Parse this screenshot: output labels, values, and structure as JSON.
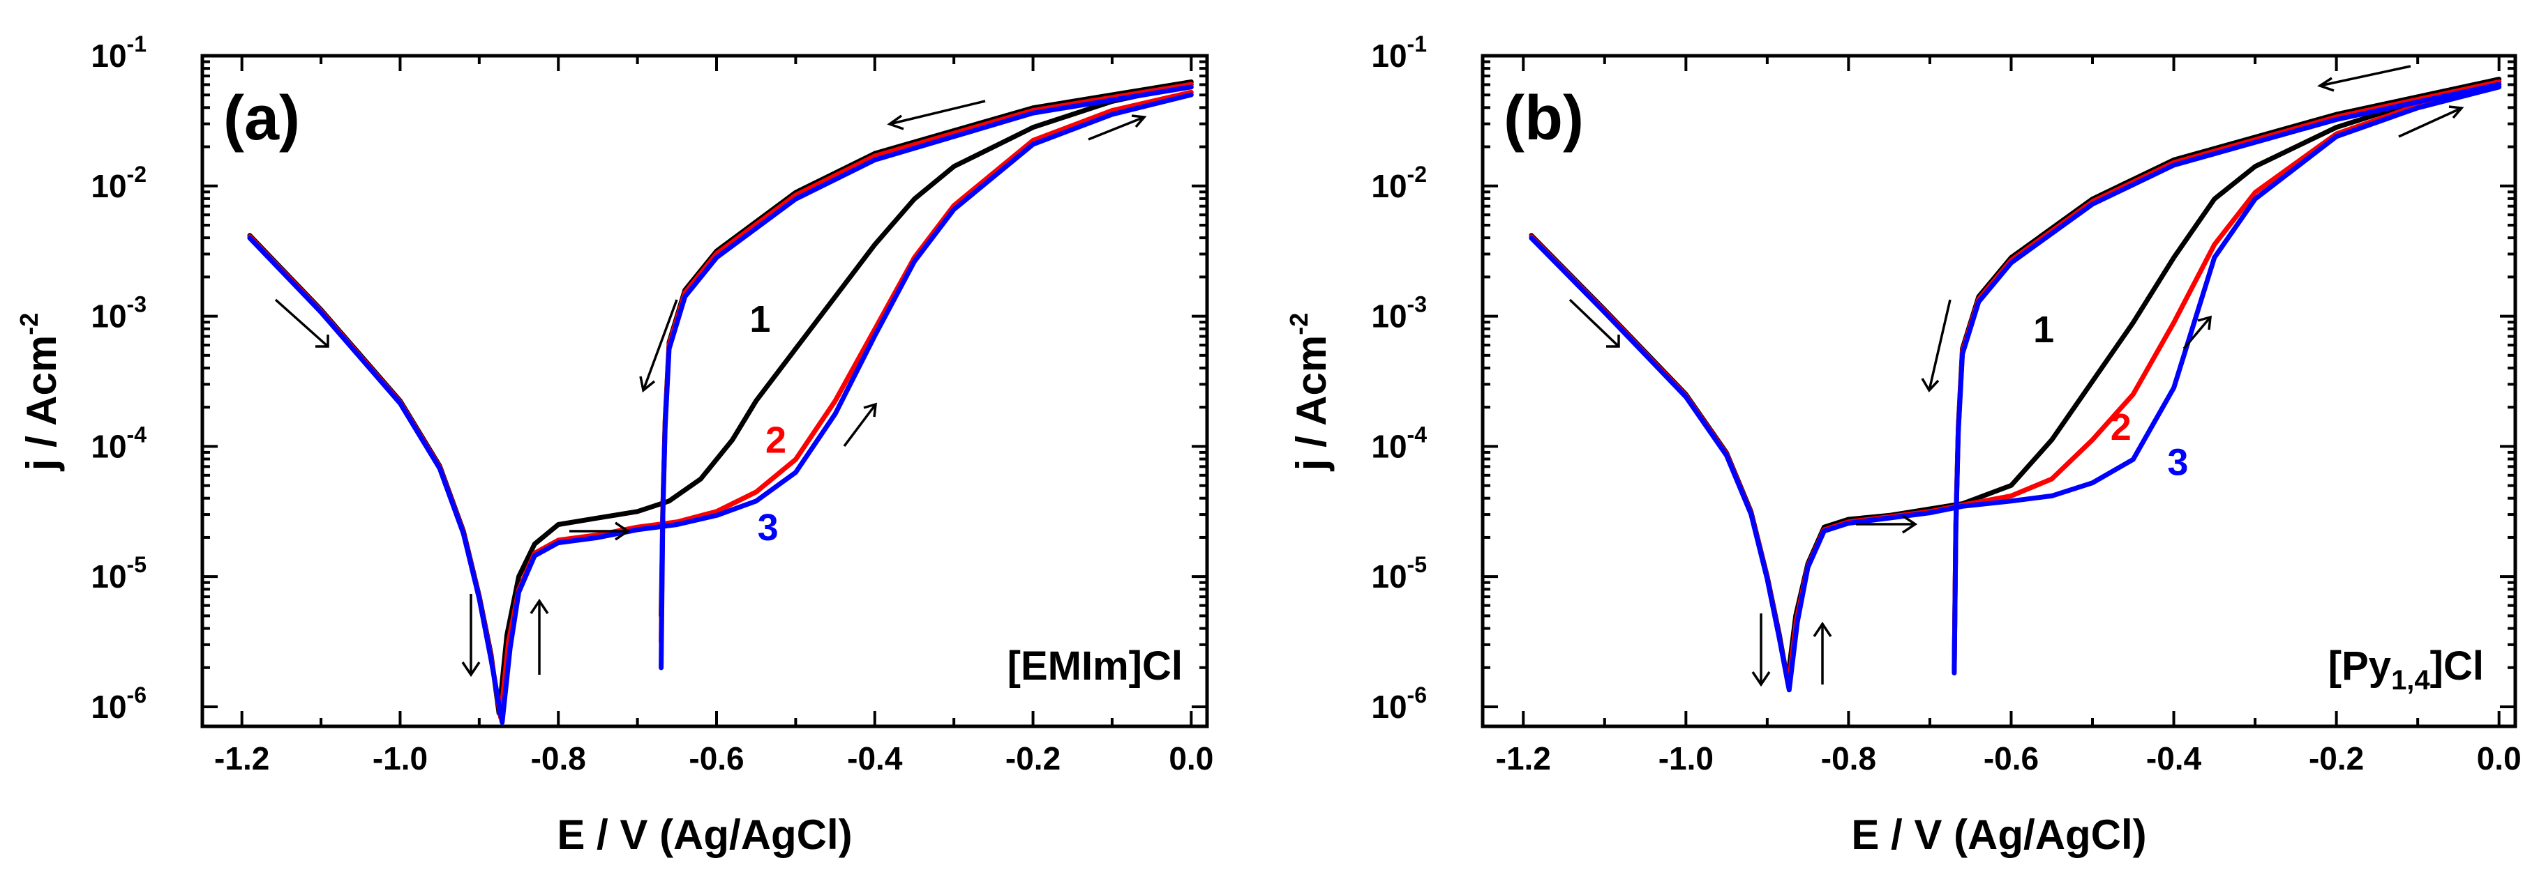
{
  "chart_data": [
    {
      "type": "line",
      "panel_label": "(a)",
      "annotation": "[EMIm]Cl",
      "xlabel": "E / V (Ag/AgCl)",
      "ylabel": "j / Acm-2",
      "ylabel_base": "j / Acm",
      "ylabel_exp": "-2",
      "xlim": [
        -1.25,
        0.02
      ],
      "ylim_log10": [
        -6.15,
        -1.0
      ],
      "xticks": [
        -1.2,
        -1.0,
        -0.8,
        -0.6,
        -0.4,
        -0.2,
        0.0
      ],
      "xtick_labels": [
        "-1.2",
        "-1.0",
        "-0.8",
        "-0.6",
        "-0.4",
        "-0.2",
        "0.0"
      ],
      "ytick_exponents": [
        -6,
        -5,
        -4,
        -3,
        -2,
        -1
      ],
      "ytick_base": "10",
      "ytick_exp_labels": [
        "-6",
        "-5",
        "-4",
        "-3",
        "-2",
        "-1"
      ],
      "series": [
        {
          "name": "1",
          "color": "#000000",
          "label_at": [
            -0.545,
            -3.12
          ],
          "forward": [
            [
              -1.19,
              -2.38
            ],
            [
              -1.1,
              -2.95
            ],
            [
              -1.0,
              -3.65
            ],
            [
              -0.95,
              -4.15
            ],
            [
              -0.92,
              -4.65
            ],
            [
              -0.9,
              -5.15
            ],
            [
              -0.885,
              -5.6
            ],
            [
              -0.875,
              -6.05
            ],
            [
              -0.865,
              -5.45
            ],
            [
              -0.85,
              -5.0
            ],
            [
              -0.83,
              -4.75
            ],
            [
              -0.8,
              -4.6
            ],
            [
              -0.75,
              -4.55
            ],
            [
              -0.7,
              -4.5
            ],
            [
              -0.66,
              -4.42
            ],
            [
              -0.62,
              -4.25
            ],
            [
              -0.58,
              -3.95
            ],
            [
              -0.55,
              -3.65
            ],
            [
              -0.5,
              -3.25
            ],
            [
              -0.45,
              -2.85
            ],
            [
              -0.4,
              -2.45
            ],
            [
              -0.35,
              -2.1
            ],
            [
              -0.3,
              -1.85
            ],
            [
              -0.2,
              -1.55
            ],
            [
              -0.1,
              -1.35
            ],
            [
              0.0,
              -1.22
            ]
          ],
          "reverse": [
            [
              0.0,
              -1.2
            ],
            [
              -0.2,
              -1.4
            ],
            [
              -0.4,
              -1.75
            ],
            [
              -0.5,
              -2.05
            ],
            [
              -0.6,
              -2.5
            ],
            [
              -0.64,
              -2.8
            ],
            [
              -0.66,
              -3.2
            ],
            [
              -0.665,
              -3.8
            ],
            [
              -0.668,
              -4.5
            ],
            [
              -0.67,
              -5.3
            ]
          ]
        },
        {
          "name": "2",
          "color": "#ff0000",
          "label_at": [
            -0.525,
            -4.05
          ],
          "forward": [
            [
              -1.19,
              -2.39
            ],
            [
              -1.1,
              -2.96
            ],
            [
              -1.0,
              -3.66
            ],
            [
              -0.95,
              -4.16
            ],
            [
              -0.92,
              -4.66
            ],
            [
              -0.9,
              -5.16
            ],
            [
              -0.885,
              -5.62
            ],
            [
              -0.873,
              -6.08
            ],
            [
              -0.863,
              -5.5
            ],
            [
              -0.85,
              -5.1
            ],
            [
              -0.83,
              -4.82
            ],
            [
              -0.8,
              -4.72
            ],
            [
              -0.75,
              -4.68
            ],
            [
              -0.7,
              -4.62
            ],
            [
              -0.65,
              -4.58
            ],
            [
              -0.6,
              -4.5
            ],
            [
              -0.55,
              -4.35
            ],
            [
              -0.5,
              -4.1
            ],
            [
              -0.45,
              -3.65
            ],
            [
              -0.4,
              -3.1
            ],
            [
              -0.35,
              -2.55
            ],
            [
              -0.3,
              -2.15
            ],
            [
              -0.2,
              -1.65
            ],
            [
              -0.1,
              -1.42
            ],
            [
              0.0,
              -1.28
            ]
          ],
          "reverse": [
            [
              0.0,
              -1.22
            ],
            [
              -0.2,
              -1.42
            ],
            [
              -0.4,
              -1.77
            ],
            [
              -0.5,
              -2.07
            ],
            [
              -0.6,
              -2.52
            ],
            [
              -0.64,
              -2.82
            ],
            [
              -0.66,
              -3.22
            ],
            [
              -0.665,
              -3.82
            ],
            [
              -0.668,
              -4.52
            ],
            [
              -0.67,
              -5.5
            ]
          ]
        },
        {
          "name": "3",
          "color": "#0000ff",
          "label_at": [
            -0.535,
            -4.72
          ],
          "forward": [
            [
              -1.19,
              -2.4
            ],
            [
              -1.1,
              -2.97
            ],
            [
              -1.0,
              -3.67
            ],
            [
              -0.95,
              -4.17
            ],
            [
              -0.92,
              -4.67
            ],
            [
              -0.9,
              -5.17
            ],
            [
              -0.885,
              -5.64
            ],
            [
              -0.871,
              -6.12
            ],
            [
              -0.861,
              -5.55
            ],
            [
              -0.85,
              -5.12
            ],
            [
              -0.83,
              -4.84
            ],
            [
              -0.8,
              -4.74
            ],
            [
              -0.75,
              -4.7
            ],
            [
              -0.7,
              -4.64
            ],
            [
              -0.65,
              -4.6
            ],
            [
              -0.6,
              -4.53
            ],
            [
              -0.55,
              -4.42
            ],
            [
              -0.5,
              -4.2
            ],
            [
              -0.45,
              -3.75
            ],
            [
              -0.4,
              -3.15
            ],
            [
              -0.35,
              -2.58
            ],
            [
              -0.3,
              -2.18
            ],
            [
              -0.2,
              -1.68
            ],
            [
              -0.1,
              -1.45
            ],
            [
              0.0,
              -1.3
            ]
          ],
          "reverse": [
            [
              0.0,
              -1.24
            ],
            [
              -0.2,
              -1.44
            ],
            [
              -0.4,
              -1.8
            ],
            [
              -0.5,
              -2.1
            ],
            [
              -0.6,
              -2.55
            ],
            [
              -0.64,
              -2.85
            ],
            [
              -0.66,
              -3.25
            ],
            [
              -0.665,
              -3.85
            ],
            [
              -0.668,
              -4.55
            ],
            [
              -0.67,
              -5.7
            ]
          ]
        }
      ]
    },
    {
      "type": "line",
      "panel_label": "(b)",
      "annotation": "[Py1,4]Cl",
      "annotation_parts": {
        "prefix": "[Py",
        "sub": "1,4",
        "suffix": "]Cl"
      },
      "xlabel": "E / V (Ag/AgCl)",
      "ylabel": "j / Acm-2",
      "ylabel_base": "j / Acm",
      "ylabel_exp": "-2",
      "xlim": [
        -1.25,
        0.02
      ],
      "ylim_log10": [
        -6.15,
        -1.0
      ],
      "xticks": [
        -1.2,
        -1.0,
        -0.8,
        -0.6,
        -0.4,
        -0.2,
        0.0
      ],
      "xtick_labels": [
        "-1.2",
        "-1.0",
        "-0.8",
        "-0.6",
        "-0.4",
        "-0.2",
        "0.0"
      ],
      "ytick_exponents": [
        -6,
        -5,
        -4,
        -3,
        -2,
        -1
      ],
      "ytick_base": "10",
      "ytick_exp_labels": [
        "-6",
        "-5",
        "-4",
        "-3",
        "-2",
        "-1"
      ],
      "series": [
        {
          "name": "1",
          "color": "#000000",
          "label_at": [
            -0.56,
            -3.2
          ],
          "forward": [
            [
              -1.19,
              -2.38
            ],
            [
              -1.1,
              -2.95
            ],
            [
              -1.0,
              -3.6
            ],
            [
              -0.95,
              -4.05
            ],
            [
              -0.92,
              -4.5
            ],
            [
              -0.9,
              -5.0
            ],
            [
              -0.885,
              -5.45
            ],
            [
              -0.875,
              -5.8
            ],
            [
              -0.865,
              -5.3
            ],
            [
              -0.85,
              -4.9
            ],
            [
              -0.83,
              -4.62
            ],
            [
              -0.8,
              -4.56
            ],
            [
              -0.75,
              -4.53
            ],
            [
              -0.7,
              -4.48
            ],
            [
              -0.66,
              -4.44
            ],
            [
              -0.6,
              -4.3
            ],
            [
              -0.55,
              -3.95
            ],
            [
              -0.5,
              -3.5
            ],
            [
              -0.45,
              -3.05
            ],
            [
              -0.4,
              -2.55
            ],
            [
              -0.35,
              -2.1
            ],
            [
              -0.3,
              -1.85
            ],
            [
              -0.2,
              -1.55
            ],
            [
              -0.1,
              -1.35
            ],
            [
              0.0,
              -1.2
            ]
          ],
          "reverse": [
            [
              0.0,
              -1.18
            ],
            [
              -0.2,
              -1.45
            ],
            [
              -0.4,
              -1.8
            ],
            [
              -0.5,
              -2.1
            ],
            [
              -0.6,
              -2.55
            ],
            [
              -0.64,
              -2.85
            ],
            [
              -0.66,
              -3.25
            ],
            [
              -0.665,
              -3.85
            ],
            [
              -0.668,
              -4.6
            ],
            [
              -0.67,
              -5.7
            ]
          ]
        },
        {
          "name": "2",
          "color": "#ff0000",
          "label_at": [
            -0.465,
            -3.95
          ],
          "forward": [
            [
              -1.19,
              -2.39
            ],
            [
              -1.1,
              -2.96
            ],
            [
              -1.0,
              -3.61
            ],
            [
              -0.95,
              -4.06
            ],
            [
              -0.92,
              -4.51
            ],
            [
              -0.9,
              -5.01
            ],
            [
              -0.885,
              -5.47
            ],
            [
              -0.874,
              -5.84
            ],
            [
              -0.864,
              -5.33
            ],
            [
              -0.85,
              -4.92
            ],
            [
              -0.83,
              -4.64
            ],
            [
              -0.8,
              -4.58
            ],
            [
              -0.75,
              -4.54
            ],
            [
              -0.7,
              -4.5
            ],
            [
              -0.66,
              -4.45
            ],
            [
              -0.6,
              -4.38
            ],
            [
              -0.55,
              -4.25
            ],
            [
              -0.5,
              -3.95
            ],
            [
              -0.45,
              -3.6
            ],
            [
              -0.4,
              -3.05
            ],
            [
              -0.35,
              -2.45
            ],
            [
              -0.3,
              -2.05
            ],
            [
              -0.2,
              -1.6
            ],
            [
              -0.1,
              -1.38
            ],
            [
              0.0,
              -1.22
            ]
          ],
          "reverse": [
            [
              0.0,
              -1.2
            ],
            [
              -0.2,
              -1.47
            ],
            [
              -0.4,
              -1.82
            ],
            [
              -0.5,
              -2.12
            ],
            [
              -0.6,
              -2.57
            ],
            [
              -0.64,
              -2.87
            ],
            [
              -0.66,
              -3.27
            ],
            [
              -0.665,
              -3.87
            ],
            [
              -0.668,
              -4.62
            ],
            [
              -0.67,
              -5.72
            ]
          ]
        },
        {
          "name": "3",
          "color": "#0000ff",
          "label_at": [
            -0.395,
            -4.22
          ],
          "forward": [
            [
              -1.19,
              -2.4
            ],
            [
              -1.1,
              -2.97
            ],
            [
              -1.0,
              -3.62
            ],
            [
              -0.95,
              -4.07
            ],
            [
              -0.92,
              -4.52
            ],
            [
              -0.9,
              -5.02
            ],
            [
              -0.885,
              -5.48
            ],
            [
              -0.873,
              -5.87
            ],
            [
              -0.863,
              -5.35
            ],
            [
              -0.85,
              -4.93
            ],
            [
              -0.83,
              -4.65
            ],
            [
              -0.8,
              -4.59
            ],
            [
              -0.75,
              -4.55
            ],
            [
              -0.7,
              -4.51
            ],
            [
              -0.66,
              -4.46
            ],
            [
              -0.6,
              -4.42
            ],
            [
              -0.55,
              -4.38
            ],
            [
              -0.5,
              -4.28
            ],
            [
              -0.45,
              -4.1
            ],
            [
              -0.4,
              -3.55
            ],
            [
              -0.35,
              -2.55
            ],
            [
              -0.3,
              -2.1
            ],
            [
              -0.2,
              -1.62
            ],
            [
              -0.1,
              -1.4
            ],
            [
              0.0,
              -1.24
            ]
          ],
          "reverse": [
            [
              0.0,
              -1.22
            ],
            [
              -0.2,
              -1.49
            ],
            [
              -0.4,
              -1.84
            ],
            [
              -0.5,
              -2.14
            ],
            [
              -0.6,
              -2.59
            ],
            [
              -0.64,
              -2.89
            ],
            [
              -0.66,
              -3.29
            ],
            [
              -0.665,
              -3.89
            ],
            [
              -0.668,
              -4.64
            ],
            [
              -0.67,
              -5.74
            ]
          ]
        }
      ]
    }
  ]
}
